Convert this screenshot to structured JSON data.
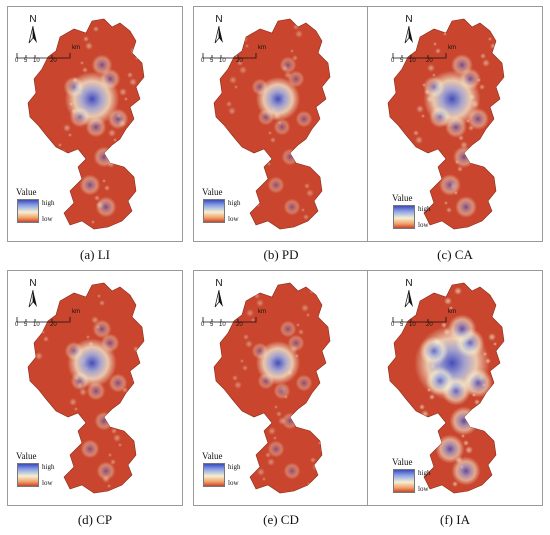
{
  "map_common": {
    "north_label": "N",
    "scale_unit": "km",
    "scale_ticks": [
      "0",
      "5",
      "10",
      "20"
    ],
    "legend_title": "Value",
    "legend_high": "high",
    "legend_low": "low",
    "colors": {
      "low": "#c9452e",
      "mid": "#f5efd2",
      "high": "#3b4cc0"
    }
  },
  "panels": [
    {
      "caption": "(a) LI",
      "intensity": 0.55
    },
    {
      "caption": "(b) PD",
      "intensity": 0.35
    },
    {
      "caption": "(c) CA",
      "intensity": 0.6
    },
    {
      "caption": "(d) CP",
      "intensity": 0.45
    },
    {
      "caption": "(e) CD",
      "intensity": 0.35
    },
    {
      "caption": "(f) IA",
      "intensity": 0.95
    }
  ]
}
